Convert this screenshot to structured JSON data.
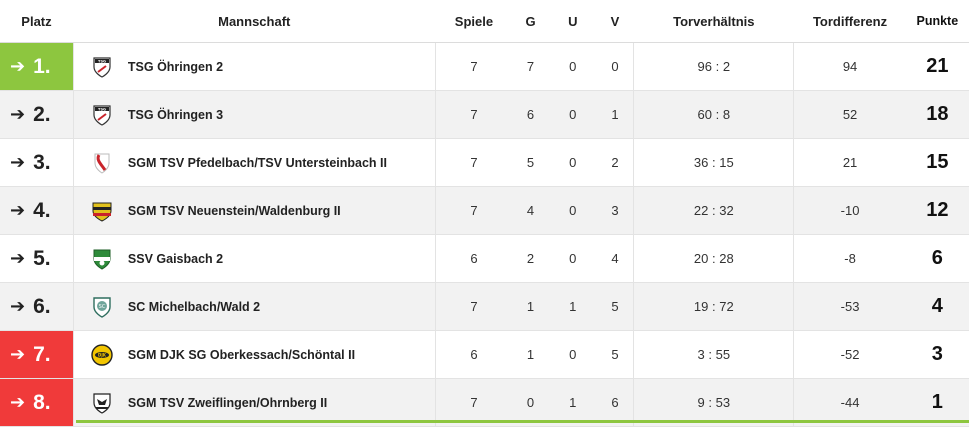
{
  "header": {
    "platz": "Platz",
    "mannschaft": "Mannschaft",
    "spiele": "Spiele",
    "g": "G",
    "u": "U",
    "v": "V",
    "torverhaeltnis": "Torverhältnis",
    "tordifferenz": "Tordifferenz",
    "punkte": "Punkte"
  },
  "colors": {
    "promotion": "#8dc63f",
    "relegation": "#f03a3a"
  },
  "rows": [
    {
      "platz": "1.",
      "zone": "promotion",
      "team": "TSG Öhringen 2",
      "logo_icon": "tsg-oehringen-logo-icon",
      "spiele": "7",
      "g": "7",
      "u": "0",
      "v": "0",
      "tore": "96 : 2",
      "diff": "94",
      "punkte": "21"
    },
    {
      "platz": "2.",
      "zone": "none",
      "team": "TSG Öhringen 3",
      "logo_icon": "tsg-oehringen-logo-icon",
      "spiele": "7",
      "g": "6",
      "u": "0",
      "v": "1",
      "tore": "60 : 8",
      "diff": "52",
      "punkte": "18"
    },
    {
      "platz": "3.",
      "zone": "none",
      "team": "SGM TSV Pfedelbach/TSV Untersteinbach II",
      "logo_icon": "tsv-pfedelbach-logo-icon",
      "spiele": "7",
      "g": "5",
      "u": "0",
      "v": "2",
      "tore": "36 : 15",
      "diff": "21",
      "punkte": "15"
    },
    {
      "platz": "4.",
      "zone": "none",
      "team": "SGM TSV Neuenstein/Waldenburg II",
      "logo_icon": "tsv-neuenstein-logo-icon",
      "spiele": "7",
      "g": "4",
      "u": "0",
      "v": "3",
      "tore": "22 : 32",
      "diff": "-10",
      "punkte": "12"
    },
    {
      "platz": "5.",
      "zone": "none",
      "team": "SSV Gaisbach 2",
      "logo_icon": "ssv-gaisbach-logo-icon",
      "spiele": "6",
      "g": "2",
      "u": "0",
      "v": "4",
      "tore": "20 : 28",
      "diff": "-8",
      "punkte": "6"
    },
    {
      "platz": "6.",
      "zone": "none",
      "team": "SC Michelbach/Wald 2",
      "logo_icon": "sc-michelbach-logo-icon",
      "spiele": "7",
      "g": "1",
      "u": "1",
      "v": "5",
      "tore": "19 : 72",
      "diff": "-53",
      "punkte": "4"
    },
    {
      "platz": "7.",
      "zone": "relegation",
      "team": "SGM DJK SG Oberkessach/Schöntal II",
      "logo_icon": "djk-oberkessach-logo-icon",
      "spiele": "6",
      "g": "1",
      "u": "0",
      "v": "5",
      "tore": "3 : 55",
      "diff": "-52",
      "punkte": "3"
    },
    {
      "platz": "8.",
      "zone": "relegation",
      "team": "SGM TSV Zweiflingen/Ohrnberg II",
      "logo_icon": "tsv-zweiflingen-logo-icon",
      "spiele": "7",
      "g": "0",
      "u": "1",
      "v": "6",
      "tore": "9 : 53",
      "diff": "-44",
      "punkte": "1"
    }
  ]
}
